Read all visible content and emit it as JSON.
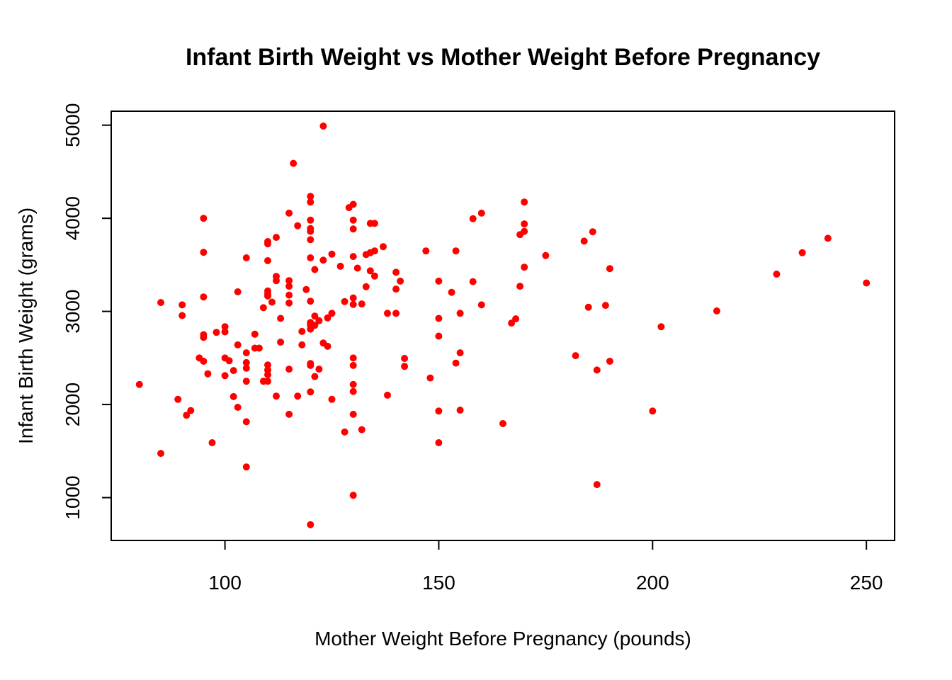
{
  "chart_data": {
    "type": "scatter",
    "title": "Infant Birth Weight vs Mother Weight Before Pregnancy",
    "xlabel": "Mother Weight Before Pregnancy (pounds)",
    "ylabel": "Infant Birth Weight (grams)",
    "xlim": [
      73.4,
      256.6
    ],
    "ylim": [
      540,
      5150
    ],
    "xticks": [
      100,
      150,
      200,
      250
    ],
    "yticks": [
      1000,
      2000,
      3000,
      4000,
      5000
    ],
    "grid": false,
    "point_color": "#ff0000",
    "series": [
      {
        "points": [
          [
            80,
            2215
          ],
          [
            85,
            1475
          ],
          [
            85,
            3095
          ],
          [
            89,
            2055
          ],
          [
            90,
            3070
          ],
          [
            90,
            2955
          ],
          [
            91,
            1885
          ],
          [
            92,
            1935
          ],
          [
            94,
            2500
          ],
          [
            95,
            4000
          ],
          [
            95,
            3635
          ],
          [
            95,
            3155
          ],
          [
            95,
            2750
          ],
          [
            95,
            2720
          ],
          [
            95,
            2465
          ],
          [
            96,
            2330
          ],
          [
            97,
            1590
          ],
          [
            98,
            2775
          ],
          [
            100,
            2835
          ],
          [
            100,
            2780
          ],
          [
            100,
            2500
          ],
          [
            100,
            2310
          ],
          [
            101,
            2470
          ],
          [
            102,
            2365
          ],
          [
            102,
            2085
          ],
          [
            103,
            3210
          ],
          [
            103,
            2640
          ],
          [
            103,
            1970
          ],
          [
            105,
            3575
          ],
          [
            105,
            2555
          ],
          [
            105,
            2450
          ],
          [
            105,
            2390
          ],
          [
            105,
            2250
          ],
          [
            105,
            1815
          ],
          [
            105,
            1330
          ],
          [
            107,
            2755
          ],
          [
            107,
            2605
          ],
          [
            108,
            2605
          ],
          [
            109,
            3040
          ],
          [
            109,
            2250
          ],
          [
            110,
            3750
          ],
          [
            110,
            3725
          ],
          [
            110,
            3545
          ],
          [
            110,
            3220
          ],
          [
            110,
            3190
          ],
          [
            110,
            3165
          ],
          [
            110,
            2425
          ],
          [
            110,
            2370
          ],
          [
            110,
            2320
          ],
          [
            110,
            2250
          ],
          [
            111,
            3100
          ],
          [
            112,
            3795
          ],
          [
            112,
            3375
          ],
          [
            112,
            3330
          ],
          [
            112,
            2090
          ],
          [
            113,
            2925
          ],
          [
            113,
            2670
          ],
          [
            115,
            4055
          ],
          [
            115,
            3330
          ],
          [
            115,
            3270
          ],
          [
            115,
            3175
          ],
          [
            115,
            3090
          ],
          [
            115,
            2380
          ],
          [
            115,
            1895
          ],
          [
            116,
            4590
          ],
          [
            117,
            3920
          ],
          [
            117,
            2090
          ],
          [
            118,
            2785
          ],
          [
            118,
            2640
          ],
          [
            119,
            3235
          ],
          [
            120,
            4235
          ],
          [
            120,
            4175
          ],
          [
            120,
            3980
          ],
          [
            120,
            3890
          ],
          [
            120,
            3860
          ],
          [
            120,
            3770
          ],
          [
            120,
            3575
          ],
          [
            120,
            3110
          ],
          [
            120,
            2880
          ],
          [
            120,
            2850
          ],
          [
            120,
            2810
          ],
          [
            120,
            2440
          ],
          [
            120,
            2420
          ],
          [
            120,
            2135
          ],
          [
            120,
            710
          ],
          [
            121,
            3450
          ],
          [
            121,
            2850
          ],
          [
            121,
            2950
          ],
          [
            121,
            2300
          ],
          [
            122,
            2900
          ],
          [
            122,
            2380
          ],
          [
            123,
            4990
          ],
          [
            123,
            3550
          ],
          [
            123,
            2660
          ],
          [
            124,
            2930
          ],
          [
            124,
            2625
          ],
          [
            125,
            3615
          ],
          [
            125,
            2980
          ],
          [
            125,
            2055
          ],
          [
            127,
            3485
          ],
          [
            128,
            3105
          ],
          [
            128,
            1705
          ],
          [
            129,
            4115
          ],
          [
            130,
            4150
          ],
          [
            130,
            3980
          ],
          [
            130,
            3885
          ],
          [
            130,
            3590
          ],
          [
            130,
            3145
          ],
          [
            130,
            3075
          ],
          [
            130,
            2500
          ],
          [
            130,
            2420
          ],
          [
            130,
            2215
          ],
          [
            130,
            2140
          ],
          [
            130,
            1895
          ],
          [
            130,
            1025
          ],
          [
            131,
            3465
          ],
          [
            132,
            3080
          ],
          [
            132,
            1730
          ],
          [
            133,
            3610
          ],
          [
            133,
            3265
          ],
          [
            134,
            3945
          ],
          [
            134,
            3630
          ],
          [
            134,
            3435
          ],
          [
            135,
            3945
          ],
          [
            135,
            3650
          ],
          [
            135,
            3380
          ],
          [
            137,
            3695
          ],
          [
            138,
            2980
          ],
          [
            138,
            2100
          ],
          [
            140,
            3420
          ],
          [
            140,
            3240
          ],
          [
            140,
            2980
          ],
          [
            141,
            3325
          ],
          [
            142,
            2495
          ],
          [
            142,
            2410
          ],
          [
            147,
            3650
          ],
          [
            148,
            2285
          ],
          [
            150,
            3325
          ],
          [
            150,
            2925
          ],
          [
            150,
            2735
          ],
          [
            150,
            1930
          ],
          [
            150,
            1590
          ],
          [
            153,
            3205
          ],
          [
            154,
            3650
          ],
          [
            154,
            2445
          ],
          [
            155,
            2980
          ],
          [
            155,
            2555
          ],
          [
            155,
            1940
          ],
          [
            158,
            3995
          ],
          [
            158,
            3320
          ],
          [
            160,
            4055
          ],
          [
            160,
            3070
          ],
          [
            165,
            1795
          ],
          [
            167,
            2875
          ],
          [
            168,
            2920
          ],
          [
            169,
            3825
          ],
          [
            169,
            3270
          ],
          [
            170,
            4175
          ],
          [
            170,
            3940
          ],
          [
            170,
            3860
          ],
          [
            170,
            3475
          ],
          [
            175,
            3600
          ],
          [
            182,
            2525
          ],
          [
            184,
            3755
          ],
          [
            185,
            3045
          ],
          [
            186,
            3855
          ],
          [
            187,
            2370
          ],
          [
            187,
            1140
          ],
          [
            189,
            3065
          ],
          [
            190,
            3460
          ],
          [
            190,
            2465
          ],
          [
            200,
            1930
          ],
          [
            202,
            2835
          ],
          [
            215,
            3005
          ],
          [
            229,
            3400
          ],
          [
            235,
            3630
          ],
          [
            241,
            3785
          ],
          [
            250,
            3305
          ]
        ]
      }
    ]
  }
}
